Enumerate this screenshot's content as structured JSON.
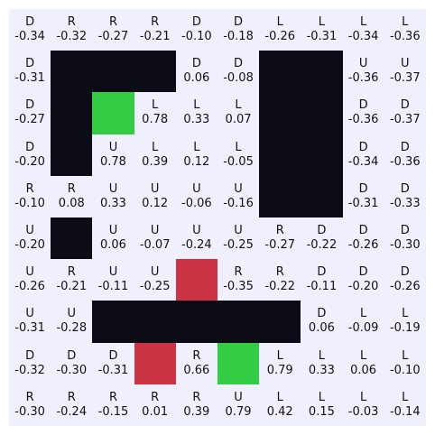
{
  "colors": {
    "background": "#f0f0fd",
    "wall": "#0c0c16",
    "goal": "#33cc44",
    "hazard": "#cc3344",
    "text": "#111111"
  },
  "grid": {
    "rows": [
      [
        {
          "type": "empty",
          "action": "D",
          "value": "-0.34"
        },
        {
          "type": "empty",
          "action": "R",
          "value": "-0.32"
        },
        {
          "type": "empty",
          "action": "R",
          "value": "-0.27"
        },
        {
          "type": "empty",
          "action": "R",
          "value": "-0.21"
        },
        {
          "type": "empty",
          "action": "D",
          "value": "-0.10"
        },
        {
          "type": "empty",
          "action": "D",
          "value": "-0.18"
        },
        {
          "type": "empty",
          "action": "L",
          "value": "-0.26"
        },
        {
          "type": "empty",
          "action": "L",
          "value": "-0.31"
        },
        {
          "type": "empty",
          "action": "L",
          "value": "-0.34"
        },
        {
          "type": "empty",
          "action": "L",
          "value": "-0.36"
        }
      ],
      [
        {
          "type": "empty",
          "action": "D",
          "value": "-0.31"
        },
        {
          "type": "wall"
        },
        {
          "type": "wall"
        },
        {
          "type": "wall"
        },
        {
          "type": "empty",
          "action": "D",
          "value": "0.06"
        },
        {
          "type": "empty",
          "action": "D",
          "value": "-0.08"
        },
        {
          "type": "wall"
        },
        {
          "type": "wall"
        },
        {
          "type": "empty",
          "action": "U",
          "value": "-0.36"
        },
        {
          "type": "empty",
          "action": "U",
          "value": "-0.37"
        }
      ],
      [
        {
          "type": "empty",
          "action": "D",
          "value": "-0.27"
        },
        {
          "type": "wall"
        },
        {
          "type": "goal"
        },
        {
          "type": "empty",
          "action": "L",
          "value": "0.78"
        },
        {
          "type": "empty",
          "action": "L",
          "value": "0.33"
        },
        {
          "type": "empty",
          "action": "L",
          "value": "0.07"
        },
        {
          "type": "wall"
        },
        {
          "type": "wall"
        },
        {
          "type": "empty",
          "action": "D",
          "value": "-0.36"
        },
        {
          "type": "empty",
          "action": "D",
          "value": "-0.37"
        }
      ],
      [
        {
          "type": "empty",
          "action": "D",
          "value": "-0.20"
        },
        {
          "type": "wall"
        },
        {
          "type": "empty",
          "action": "U",
          "value": "0.78"
        },
        {
          "type": "empty",
          "action": "L",
          "value": "0.39"
        },
        {
          "type": "empty",
          "action": "L",
          "value": "0.12"
        },
        {
          "type": "empty",
          "action": "L",
          "value": "-0.05"
        },
        {
          "type": "wall"
        },
        {
          "type": "wall"
        },
        {
          "type": "empty",
          "action": "D",
          "value": "-0.34"
        },
        {
          "type": "empty",
          "action": "D",
          "value": "-0.36"
        }
      ],
      [
        {
          "type": "empty",
          "action": "R",
          "value": "-0.10"
        },
        {
          "type": "empty",
          "action": "R",
          "value": "0.08"
        },
        {
          "type": "empty",
          "action": "U",
          "value": "0.33"
        },
        {
          "type": "empty",
          "action": "U",
          "value": "0.12"
        },
        {
          "type": "empty",
          "action": "U",
          "value": "-0.06"
        },
        {
          "type": "empty",
          "action": "U",
          "value": "-0.16"
        },
        {
          "type": "wall"
        },
        {
          "type": "wall"
        },
        {
          "type": "empty",
          "action": "D",
          "value": "-0.31"
        },
        {
          "type": "empty",
          "action": "D",
          "value": "-0.33"
        }
      ],
      [
        {
          "type": "empty",
          "action": "U",
          "value": "-0.20"
        },
        {
          "type": "wall"
        },
        {
          "type": "empty",
          "action": "U",
          "value": "0.06"
        },
        {
          "type": "empty",
          "action": "U",
          "value": "-0.07"
        },
        {
          "type": "empty",
          "action": "U",
          "value": "-0.24"
        },
        {
          "type": "empty",
          "action": "U",
          "value": "-0.25"
        },
        {
          "type": "empty",
          "action": "R",
          "value": "-0.27"
        },
        {
          "type": "empty",
          "action": "D",
          "value": "-0.22"
        },
        {
          "type": "empty",
          "action": "D",
          "value": "-0.26"
        },
        {
          "type": "empty",
          "action": "D",
          "value": "-0.30"
        }
      ],
      [
        {
          "type": "empty",
          "action": "U",
          "value": "-0.26"
        },
        {
          "type": "empty",
          "action": "R",
          "value": "-0.21"
        },
        {
          "type": "empty",
          "action": "U",
          "value": "-0.11"
        },
        {
          "type": "empty",
          "action": "U",
          "value": "-0.25"
        },
        {
          "type": "hazard"
        },
        {
          "type": "empty",
          "action": "R",
          "value": "-0.35"
        },
        {
          "type": "empty",
          "action": "R",
          "value": "-0.22"
        },
        {
          "type": "empty",
          "action": "D",
          "value": "-0.11"
        },
        {
          "type": "empty",
          "action": "D",
          "value": "-0.20"
        },
        {
          "type": "empty",
          "action": "D",
          "value": "-0.26"
        }
      ],
      [
        {
          "type": "empty",
          "action": "U",
          "value": "-0.31"
        },
        {
          "type": "empty",
          "action": "U",
          "value": "-0.28"
        },
        {
          "type": "wall"
        },
        {
          "type": "wall"
        },
        {
          "type": "wall"
        },
        {
          "type": "wall"
        },
        {
          "type": "wall"
        },
        {
          "type": "empty",
          "action": "D",
          "value": "0.06"
        },
        {
          "type": "empty",
          "action": "L",
          "value": "-0.09"
        },
        {
          "type": "empty",
          "action": "L",
          "value": "-0.19"
        }
      ],
      [
        {
          "type": "empty",
          "action": "D",
          "value": "-0.32"
        },
        {
          "type": "empty",
          "action": "D",
          "value": "-0.30"
        },
        {
          "type": "empty",
          "action": "D",
          "value": "-0.31"
        },
        {
          "type": "hazard"
        },
        {
          "type": "empty",
          "action": "R",
          "value": "0.66"
        },
        {
          "type": "goal"
        },
        {
          "type": "empty",
          "action": "L",
          "value": "0.79"
        },
        {
          "type": "empty",
          "action": "L",
          "value": "0.33"
        },
        {
          "type": "empty",
          "action": "L",
          "value": "0.06"
        },
        {
          "type": "empty",
          "action": "L",
          "value": "-0.10"
        }
      ],
      [
        {
          "type": "empty",
          "action": "R",
          "value": "-0.30"
        },
        {
          "type": "empty",
          "action": "R",
          "value": "-0.24"
        },
        {
          "type": "empty",
          "action": "R",
          "value": "-0.15"
        },
        {
          "type": "empty",
          "action": "R",
          "value": "0.01"
        },
        {
          "type": "empty",
          "action": "R",
          "value": "0.39"
        },
        {
          "type": "empty",
          "action": "U",
          "value": "0.79"
        },
        {
          "type": "empty",
          "action": "L",
          "value": "0.42"
        },
        {
          "type": "empty",
          "action": "L",
          "value": "0.15"
        },
        {
          "type": "empty",
          "action": "L",
          "value": "-0.03"
        },
        {
          "type": "empty",
          "action": "L",
          "value": "-0.14"
        }
      ]
    ]
  }
}
